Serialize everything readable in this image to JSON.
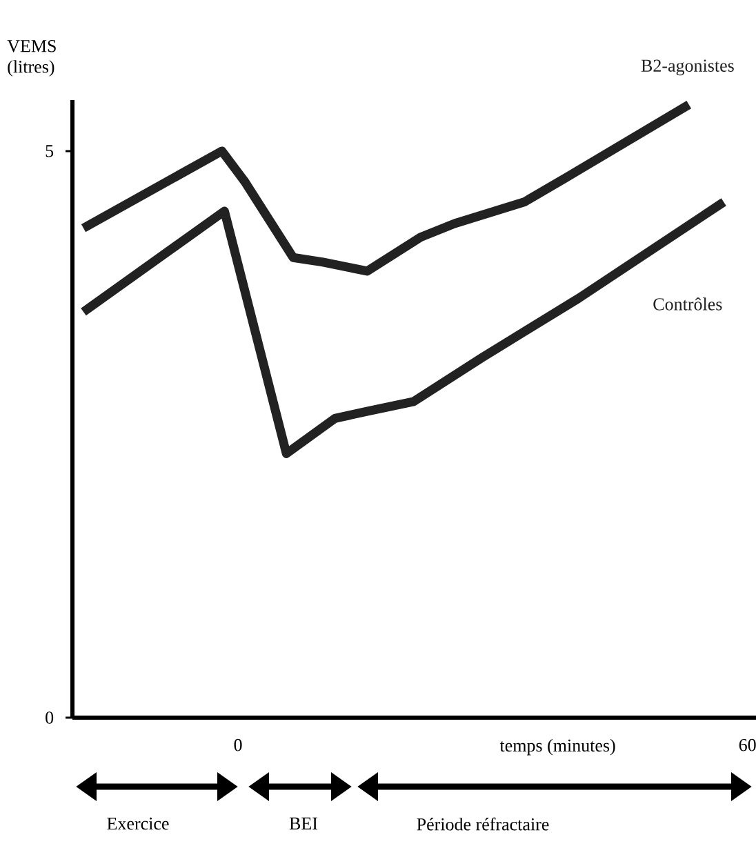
{
  "chart_data": {
    "type": "line",
    "xlabel": "temps (minutes)",
    "ylabel": "VEMS (litres)",
    "xlim": [
      -19.5,
      61
    ],
    "xticks": [
      0,
      60
    ],
    "ylim": [
      0,
      5.45
    ],
    "yticks": [
      0,
      5
    ],
    "grid": false,
    "marker": "none",
    "line_style": "solid",
    "series": [
      {
        "name": "B2-agonistes",
        "color": "#222222",
        "x": [
          -18.2,
          -1.9,
          0.8,
          6.5,
          10,
          15.2,
          21.5,
          25.5,
          33.7,
          38.5,
          53.1
        ],
        "values": [
          4.32,
          5.0,
          4.73,
          4.06,
          4.02,
          3.94,
          4.24,
          4.36,
          4.55,
          4.76,
          5.41
        ]
      },
      {
        "name": "Contrôles",
        "color": "#222222",
        "x": [
          -18.2,
          -1.6,
          5.7,
          11.4,
          15,
          20.7,
          28.8,
          40.1,
          57.2
        ],
        "values": [
          3.58,
          4.47,
          2.33,
          2.64,
          2.7,
          2.79,
          3.18,
          3.7,
          4.55
        ]
      }
    ],
    "annotations": [
      "Exercice",
      "BEI",
      "Période réfractaire"
    ]
  }
}
